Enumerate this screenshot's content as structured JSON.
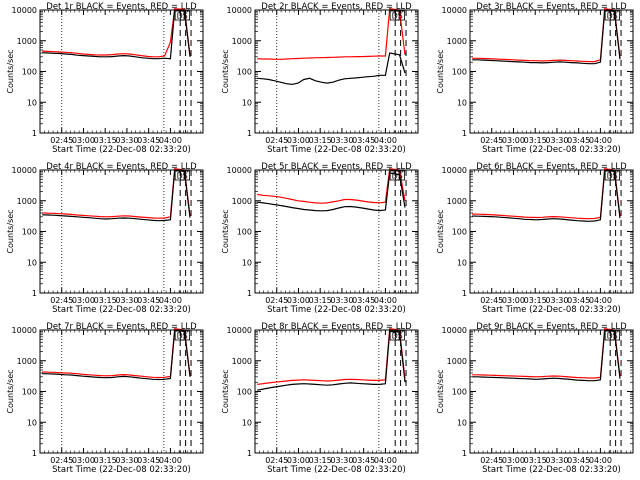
{
  "chart_data": [
    {
      "type": "line",
      "title": "Det 1r BLACK = Events, RED = LLD",
      "xlabel": "Start Time (22-Dec-08 02:33:20)",
      "ylabel": "Counts/sec",
      "xticks": [
        "02:45",
        "03:00",
        "03:15",
        "03:30",
        "03:45",
        "04:00"
      ],
      "yticks": [
        "1",
        "10",
        "100",
        "1000",
        "10000"
      ],
      "ylim": [
        1,
        10000
      ],
      "yscale": "log",
      "vlines": {
        "dotted": [
          10,
          57
        ],
        "dashed": [
          64.5,
          67,
          69.5
        ]
      },
      "markers": [
        "D",
        "S"
      ],
      "series": [
        {
          "name": "BLACK",
          "color": "#000000",
          "values": [
            410,
            400,
            390,
            385,
            370,
            360,
            340,
            330,
            320,
            310,
            300,
            300,
            305,
            320,
            330,
            320,
            300,
            280,
            270,
            260,
            260,
            270,
            260,
            10000,
            9500,
            300
          ]
        },
        {
          "name": "RED",
          "color": "#ff0000",
          "values": [
            460,
            450,
            440,
            430,
            420,
            410,
            390,
            370,
            360,
            350,
            345,
            345,
            355,
            370,
            380,
            370,
            350,
            330,
            310,
            300,
            300,
            320,
            900,
            11000,
            10500,
            350
          ]
        }
      ]
    },
    {
      "type": "line",
      "title": "Det 2r BLACK = Events, RED = LLD",
      "xlabel": "Start Time (22-Dec-08 02:33:20)",
      "ylabel": "Counts/sec",
      "xticks": [
        "02:45",
        "03:00",
        "03:15",
        "03:30",
        "03:45",
        "04:00"
      ],
      "yticks": [
        "1",
        "10",
        "100",
        "1000",
        "10000"
      ],
      "ylim": [
        1,
        10000
      ],
      "yscale": "log",
      "vlines": {
        "dotted": [
          10,
          57
        ],
        "dashed": [
          64.5,
          67,
          69.5
        ]
      },
      "markers": [
        "D",
        "S"
      ],
      "series": [
        {
          "name": "BLACK",
          "color": "#000000",
          "values": [
            60,
            58,
            55,
            50,
            45,
            40,
            38,
            42,
            55,
            60,
            50,
            45,
            42,
            45,
            52,
            58,
            60,
            62,
            65,
            68,
            70,
            75,
            75,
            400,
            350,
            90
          ]
        },
        {
          "name": "RED",
          "color": "#ff0000",
          "values": [
            260,
            255,
            255,
            250,
            250,
            255,
            260,
            265,
            270,
            275,
            280,
            280,
            285,
            290,
            295,
            300,
            300,
            305,
            305,
            310,
            315,
            320,
            320,
            11000,
            10000,
            350
          ]
        }
      ]
    },
    {
      "type": "line",
      "title": "Det 3r BLACK = Events, RED = LLD",
      "xlabel": "Start Time (22-Dec-08 02:33:20)",
      "ylabel": "Counts/sec",
      "xticks": [
        "02:45",
        "03:00",
        "03:15",
        "03:30",
        "03:45",
        "04:00"
      ],
      "yticks": [
        "1",
        "10",
        "100",
        "1000",
        "10000"
      ],
      "ylim": [
        1,
        10000
      ],
      "yscale": "log",
      "vlines": {
        "dotted": [],
        "dashed": [
          64.5,
          67,
          69.5
        ]
      },
      "markers": [
        "D",
        "S"
      ],
      "series": [
        {
          "name": "BLACK",
          "color": "#000000",
          "values": [
            240,
            240,
            235,
            230,
            225,
            220,
            215,
            210,
            205,
            200,
            195,
            195,
            190,
            195,
            200,
            205,
            200,
            195,
            190,
            185,
            180,
            180,
            200,
            9500,
            9000,
            250
          ]
        },
        {
          "name": "RED",
          "color": "#ff0000",
          "values": [
            270,
            268,
            265,
            260,
            255,
            250,
            245,
            240,
            235,
            230,
            225,
            225,
            220,
            225,
            230,
            235,
            230,
            225,
            220,
            215,
            210,
            210,
            240,
            11000,
            10000,
            280
          ]
        }
      ]
    },
    {
      "type": "line",
      "title": "Det 4r BLACK = Events, RED = LLD",
      "xlabel": "Start Time (22-Dec-08 02:33:20)",
      "ylabel": "Counts/sec",
      "xticks": [
        "02:45",
        "03:00",
        "03:15",
        "03:30",
        "03:45",
        "04:00"
      ],
      "yticks": [
        "1",
        "10",
        "100",
        "1000",
        "10000"
      ],
      "ylim": [
        1,
        10000
      ],
      "yscale": "log",
      "vlines": {
        "dotted": [
          10,
          57
        ],
        "dashed": [
          64.5,
          67,
          69.5
        ]
      },
      "markers": [
        "D",
        "S"
      ],
      "series": [
        {
          "name": "BLACK",
          "color": "#000000",
          "values": [
            350,
            345,
            340,
            330,
            320,
            310,
            300,
            290,
            280,
            270,
            260,
            255,
            260,
            270,
            275,
            270,
            260,
            250,
            240,
            230,
            225,
            230,
            240,
            9500,
            9000,
            280
          ]
        },
        {
          "name": "RED",
          "color": "#ff0000",
          "values": [
            400,
            395,
            390,
            380,
            370,
            360,
            345,
            335,
            325,
            315,
            305,
            300,
            305,
            315,
            325,
            320,
            305,
            295,
            285,
            275,
            270,
            275,
            300,
            11000,
            10000,
            330
          ]
        }
      ]
    },
    {
      "type": "line",
      "title": "Det 5r BLACK = Events, RED = LLD",
      "xlabel": "Start Time (22-Dec-08 02:33:20)",
      "ylabel": "Counts/sec",
      "xticks": [
        "02:45",
        "03:00",
        "03:15",
        "03:30",
        "03:45",
        "04:00"
      ],
      "yticks": [
        "1",
        "10",
        "100",
        "1000",
        "10000"
      ],
      "ylim": [
        1,
        10000
      ],
      "yscale": "log",
      "vlines": {
        "dotted": [
          10,
          57
        ],
        "dashed": [
          64.5,
          67,
          69.5
        ]
      },
      "markers": [
        "D",
        "S"
      ],
      "series": [
        {
          "name": "BLACK",
          "color": "#000000",
          "values": [
            900,
            850,
            800,
            750,
            700,
            650,
            600,
            560,
            520,
            500,
            480,
            470,
            480,
            520,
            580,
            640,
            650,
            620,
            580,
            540,
            500,
            480,
            500,
            8000,
            7000,
            600
          ]
        },
        {
          "name": "RED",
          "color": "#ff0000",
          "values": [
            1600,
            1500,
            1450,
            1400,
            1300,
            1200,
            1100,
            1000,
            950,
            900,
            850,
            830,
            850,
            920,
            1000,
            1100,
            1100,
            1050,
            980,
            920,
            880,
            860,
            900,
            11000,
            10000,
            1000
          ]
        }
      ]
    },
    {
      "type": "line",
      "title": "Det 6r BLACK = Events, RED = LLD",
      "xlabel": "Start Time (22-Dec-08 02:33:20)",
      "ylabel": "Counts/sec",
      "xticks": [
        "02:45",
        "03:00",
        "03:15",
        "03:30",
        "03:45",
        "04:00"
      ],
      "yticks": [
        "1",
        "10",
        "100",
        "1000",
        "10000"
      ],
      "ylim": [
        1,
        10000
      ],
      "yscale": "log",
      "vlines": {
        "dotted": [],
        "dashed": [
          64.5,
          67,
          69.5
        ]
      },
      "markers": [
        "D",
        "S"
      ],
      "series": [
        {
          "name": "BLACK",
          "color": "#000000",
          "values": [
            320,
            315,
            310,
            305,
            300,
            290,
            280,
            270,
            260,
            250,
            245,
            240,
            245,
            255,
            260,
            255,
            245,
            235,
            225,
            220,
            215,
            220,
            240,
            9500,
            9000,
            270
          ]
        },
        {
          "name": "RED",
          "color": "#ff0000",
          "values": [
            370,
            365,
            360,
            355,
            345,
            335,
            325,
            315,
            305,
            295,
            290,
            285,
            290,
            300,
            305,
            300,
            290,
            280,
            270,
            265,
            260,
            265,
            290,
            11000,
            10000,
            320
          ]
        }
      ]
    },
    {
      "type": "line",
      "title": "Det 7r BLACK = Events, RED = LLD",
      "xlabel": "Start Time (22-Dec-08 02:33:20)",
      "ylabel": "Counts/sec",
      "xticks": [
        "02:45",
        "03:00",
        "03:15",
        "03:30",
        "03:45",
        "04:00"
      ],
      "yticks": [
        "1",
        "10",
        "100",
        "1000",
        "10000"
      ],
      "ylim": [
        1,
        10000
      ],
      "yscale": "log",
      "vlines": {
        "dotted": [
          10,
          57
        ],
        "dashed": [
          64.5,
          67,
          69.5
        ]
      },
      "markers": [
        "D",
        "S"
      ],
      "series": [
        {
          "name": "BLACK",
          "color": "#000000",
          "values": [
            380,
            375,
            370,
            360,
            350,
            345,
            330,
            315,
            305,
            295,
            285,
            280,
            285,
            300,
            310,
            300,
            285,
            270,
            260,
            250,
            245,
            250,
            265,
            9500,
            9000,
            300
          ]
        },
        {
          "name": "RED",
          "color": "#ff0000",
          "values": [
            430,
            425,
            420,
            410,
            400,
            395,
            380,
            360,
            350,
            340,
            330,
            325,
            330,
            345,
            355,
            345,
            330,
            315,
            300,
            290,
            285,
            290,
            310,
            11000,
            10000,
            350
          ]
        }
      ]
    },
    {
      "type": "line",
      "title": "Det 8r BLACK = Events, RED = LLD",
      "xlabel": "Start Time (22-Dec-08 02:33:20)",
      "ylabel": "Counts/sec",
      "xticks": [
        "02:45",
        "03:00",
        "03:15",
        "03:30",
        "03:45",
        "04:00"
      ],
      "yticks": [
        "1",
        "10",
        "100",
        "1000",
        "10000"
      ],
      "ylim": [
        1,
        10000
      ],
      "yscale": "log",
      "vlines": {
        "dotted": [
          10,
          57
        ],
        "dashed": [
          64.5,
          67,
          69.5
        ]
      },
      "markers": [
        "D",
        "S"
      ],
      "series": [
        {
          "name": "BLACK",
          "color": "#000000",
          "values": [
            110,
            120,
            130,
            140,
            150,
            160,
            170,
            175,
            180,
            175,
            170,
            165,
            160,
            165,
            175,
            185,
            190,
            185,
            180,
            175,
            170,
            170,
            180,
            9000,
            8500,
            200
          ]
        },
        {
          "name": "RED",
          "color": "#ff0000",
          "values": [
            170,
            180,
            190,
            200,
            210,
            220,
            230,
            235,
            240,
            235,
            230,
            225,
            220,
            225,
            235,
            245,
            250,
            245,
            240,
            235,
            230,
            230,
            240,
            11000,
            10000,
            260
          ]
        }
      ]
    },
    {
      "type": "line",
      "title": "Det 9r BLACK = Events, RED = LLD",
      "xlabel": "Start Time (22-Dec-08 02:33:20)",
      "ylabel": "Counts/sec",
      "xticks": [
        "02:45",
        "03:00",
        "03:15",
        "03:30",
        "03:45",
        "04:00"
      ],
      "yticks": [
        "1",
        "10",
        "100",
        "1000",
        "10000"
      ],
      "ylim": [
        1,
        10000
      ],
      "yscale": "log",
      "vlines": {
        "dotted": [],
        "dashed": [
          64.5,
          67,
          69.5
        ]
      },
      "markers": [
        "D",
        "S"
      ],
      "series": [
        {
          "name": "BLACK",
          "color": "#000000",
          "values": [
            300,
            300,
            295,
            290,
            285,
            280,
            275,
            270,
            265,
            260,
            255,
            250,
            255,
            265,
            270,
            265,
            255,
            245,
            235,
            230,
            225,
            225,
            240,
            9500,
            9000,
            260
          ]
        },
        {
          "name": "RED",
          "color": "#ff0000",
          "values": [
            350,
            350,
            345,
            340,
            335,
            330,
            325,
            320,
            315,
            310,
            305,
            300,
            305,
            315,
            320,
            315,
            305,
            295,
            285,
            280,
            275,
            275,
            290,
            11000,
            10000,
            310
          ]
        }
      ]
    }
  ]
}
